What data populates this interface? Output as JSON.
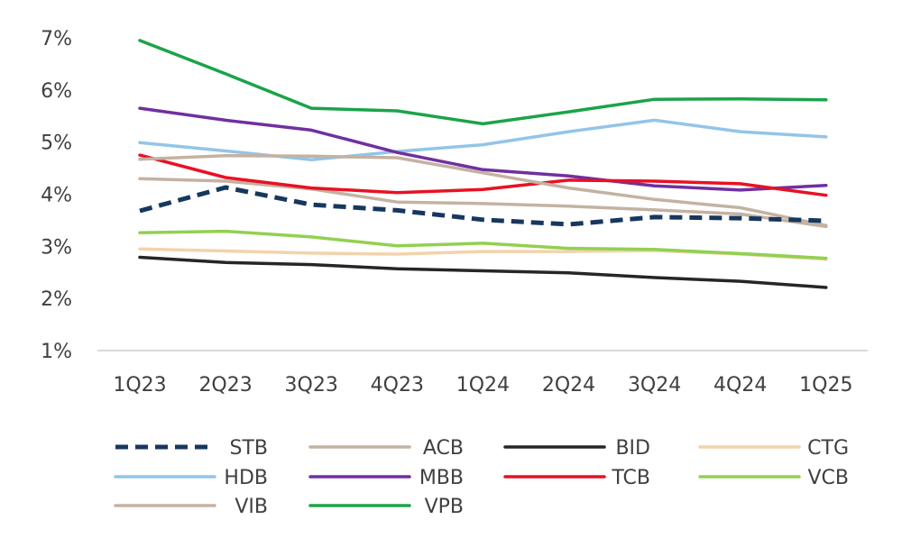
{
  "chart_data": {
    "type": "line",
    "title": "",
    "xlabel": "",
    "ylabel": "",
    "categories": [
      "1Q23",
      "2Q23",
      "3Q23",
      "4Q23",
      "1Q24",
      "2Q24",
      "3Q24",
      "4Q24",
      "1Q25"
    ],
    "ylim": [
      0.01,
      0.07
    ],
    "yticks": [
      0.01,
      0.02,
      0.03,
      0.04,
      0.05,
      0.06,
      0.07
    ],
    "ytick_labels": [
      "1%",
      "2%",
      "3%",
      "4%",
      "5%",
      "6%",
      "7%"
    ],
    "grid": false,
    "legend_position": "bottom",
    "series": [
      {
        "name": "STB",
        "color": "#17375e",
        "dashed": true,
        "values": [
          0.0368,
          0.0413,
          0.038,
          0.0369,
          0.0351,
          0.0342,
          0.0356,
          0.0354,
          0.0349
        ]
      },
      {
        "name": "ACB",
        "color": "#c4b2a2",
        "dashed": false,
        "values": [
          0.043,
          0.0425,
          0.041,
          0.0385,
          0.0382,
          0.0377,
          0.037,
          0.0362,
          0.0338
        ]
      },
      {
        "name": "BID",
        "color": "#262626",
        "dashed": false,
        "values": [
          0.0279,
          0.0269,
          0.0265,
          0.0257,
          0.0253,
          0.0249,
          0.024,
          0.0233,
          0.0221
        ]
      },
      {
        "name": "CTG",
        "color": "#f3d3ac",
        "dashed": false,
        "values": [
          0.0295,
          0.0291,
          0.0287,
          0.0285,
          0.029,
          0.029,
          0.0292,
          0.0285,
          0.0275
        ]
      },
      {
        "name": "HDB",
        "color": "#92c5e8",
        "dashed": false,
        "values": [
          0.0499,
          0.0483,
          0.0466,
          0.0482,
          0.0495,
          0.052,
          0.0542,
          0.052,
          0.051
        ]
      },
      {
        "name": "MBB",
        "color": "#7030a0",
        "dashed": false,
        "values": [
          0.0565,
          0.0542,
          0.0523,
          0.048,
          0.0447,
          0.0435,
          0.0416,
          0.0408,
          0.0417
        ]
      },
      {
        "name": "TCB",
        "color": "#e81123",
        "dashed": false,
        "values": [
          0.0475,
          0.0432,
          0.0412,
          0.0403,
          0.0409,
          0.0427,
          0.0425,
          0.042,
          0.0398
        ]
      },
      {
        "name": "VCB",
        "color": "#92d050",
        "dashed": false,
        "values": [
          0.0326,
          0.0329,
          0.0318,
          0.0301,
          0.0306,
          0.0296,
          0.0294,
          0.0286,
          0.0277
        ]
      },
      {
        "name": "VIB",
        "color": "#c4b2a2",
        "dashed": false,
        "values": [
          0.0467,
          0.0474,
          0.0473,
          0.047,
          0.0441,
          0.0412,
          0.039,
          0.0374,
          0.034
        ]
      },
      {
        "name": "VPB",
        "color": "#1ba34a",
        "dashed": false,
        "values": [
          0.0695,
          0.0631,
          0.0565,
          0.056,
          0.0535,
          0.0558,
          0.0582,
          0.0583,
          0.0581
        ]
      }
    ]
  }
}
